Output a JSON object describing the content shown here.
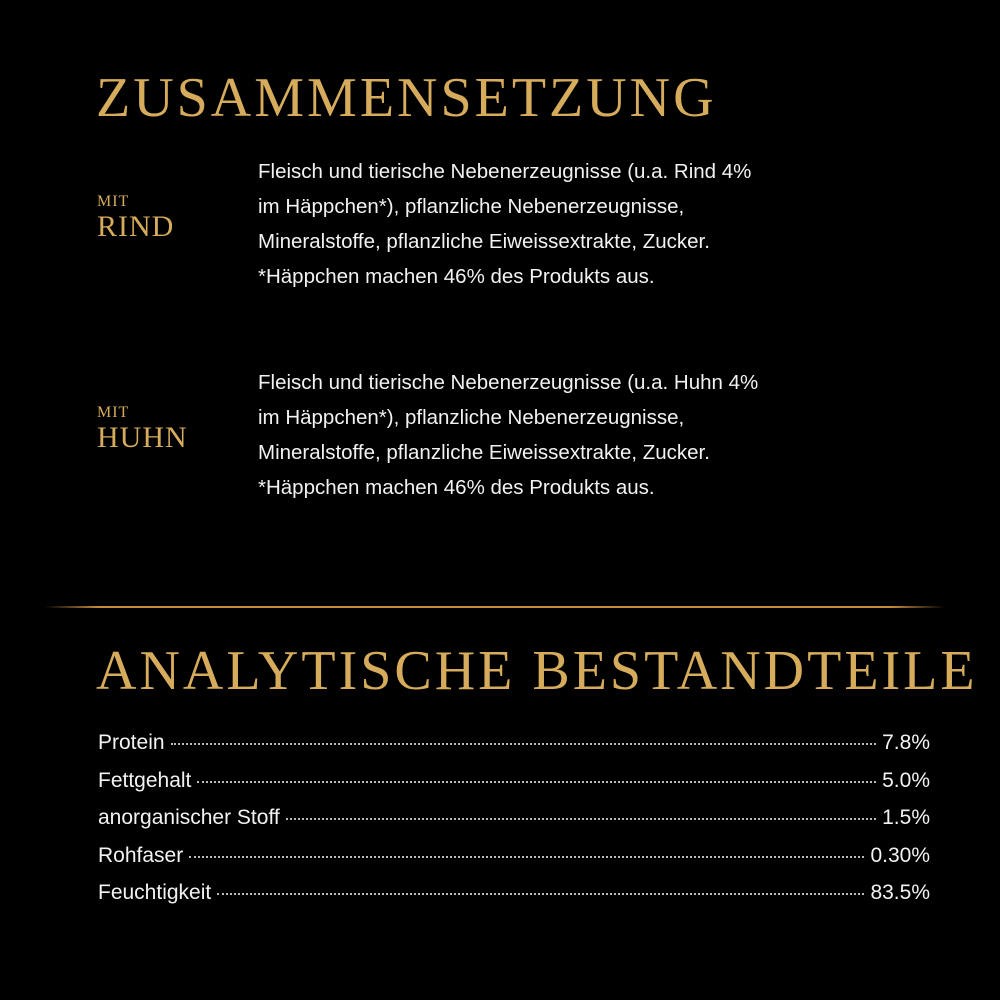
{
  "composition": {
    "title": "ZUSAMMENSETZUNG",
    "variants": [
      {
        "prefix": "MIT",
        "name": "RIND",
        "lines": [
          "Fleisch und tierische Nebenerzeugnisse (u.a. Rind 4%",
          "im Häppchen*), pflanzliche Nebenerzeugnisse,",
          "Mineralstoffe, pflanzliche Eiweissextrakte, Zucker.",
          "*Häppchen machen 46% des Produkts aus."
        ]
      },
      {
        "prefix": "MIT",
        "name": "HUHN",
        "lines": [
          "Fleisch und tierische Nebenerzeugnisse (u.a. Huhn 4%",
          "im Häppchen*), pflanzliche Nebenerzeugnisse,",
          "Mineralstoffe, pflanzliche Eiweissextrakte, Zucker.",
          "*Häppchen machen 46% des Produkts aus."
        ]
      }
    ]
  },
  "analysis": {
    "title": "ANALYTISCHE BESTANDTEILE",
    "rows": [
      {
        "name": "Protein",
        "value": "7.8%"
      },
      {
        "name": "Fettgehalt",
        "value": "5.0%"
      },
      {
        "name": "anorganischer Stoff",
        "value": "1.5%"
      },
      {
        "name": "Rohfaser",
        "value": "0.30%"
      },
      {
        "name": "Feuchtigkeit",
        "value": "83.5%"
      }
    ]
  },
  "colors": {
    "gold": "#d6ac5c",
    "background": "#000000",
    "rule": "#c88a3a"
  }
}
